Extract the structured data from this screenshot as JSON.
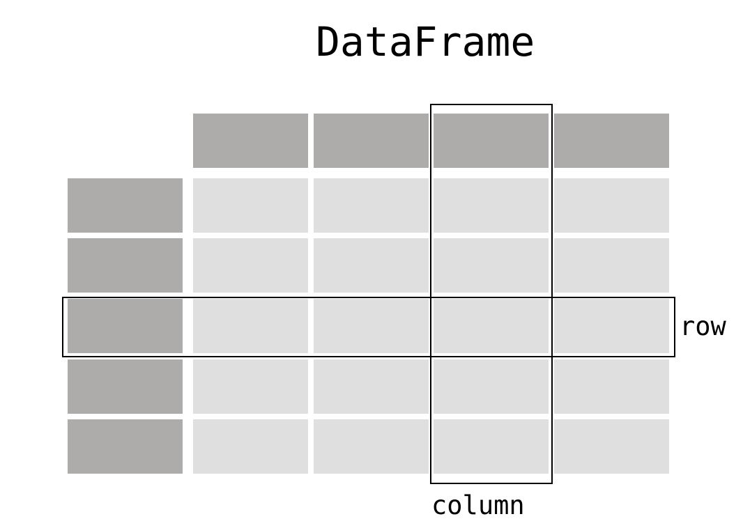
{
  "title": "DataFrame",
  "grid": {
    "header_columns": 4,
    "index_rows": 5,
    "header_color": "#adacab",
    "index_color": "#adacab",
    "cell_color": "#e0dfe0",
    "highlighted_row": 3,
    "highlighted_column": 3
  },
  "labels": {
    "row": "row",
    "column": "column"
  }
}
